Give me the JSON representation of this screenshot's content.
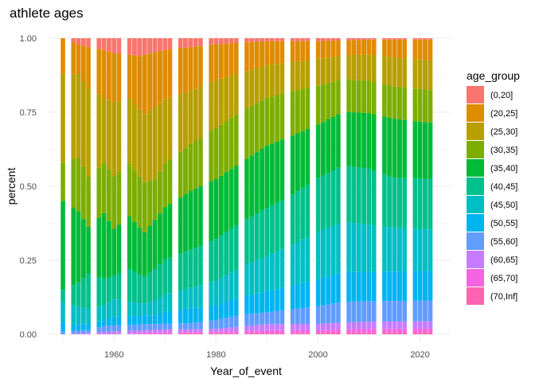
{
  "chart_data": {
    "type": "area",
    "subtype": "stacked-percent-bars",
    "title": "athlete ages",
    "xlabel": "Year_of_event",
    "ylabel": "percent",
    "xlim": [
      1947,
      2026
    ],
    "ylim": [
      0,
      1
    ],
    "x_ticks": [
      1960,
      1980,
      2000,
      2020
    ],
    "y_ticks": [
      0,
      0.25,
      0.5,
      0.75,
      1
    ],
    "y_tick_labels": [
      "0.00",
      "0.25",
      "0.50",
      "0.75",
      "1.00"
    ],
    "grid": true,
    "legend": {
      "title": "age_group",
      "position": "right"
    },
    "x_start": 1950,
    "x_end": 2022,
    "x_missing": [
      1951,
      1956,
      1962,
      1972,
      1978,
      1985,
      1994,
      1999,
      2005,
      2012,
      2018
    ],
    "series": [
      {
        "name": "(0,20]",
        "color": "#F8766D",
        "keyframes": [
          [
            1950,
            0.0
          ],
          [
            1953,
            0.02
          ],
          [
            1955,
            0.03
          ],
          [
            1958,
            0.04
          ],
          [
            1960,
            0.05
          ],
          [
            1965,
            0.06
          ],
          [
            1970,
            0.04
          ],
          [
            1975,
            0.03
          ],
          [
            1980,
            0.02
          ],
          [
            1990,
            0.01
          ],
          [
            2000,
            0.01
          ],
          [
            2010,
            0.005
          ],
          [
            2022,
            0.005
          ]
        ]
      },
      {
        "name": "(20,25]",
        "color": "#DE8C00",
        "keyframes": [
          [
            1950,
            0.12
          ],
          [
            1953,
            0.1
          ],
          [
            1955,
            0.14
          ],
          [
            1958,
            0.16
          ],
          [
            1960,
            0.17
          ],
          [
            1963,
            0.15
          ],
          [
            1966,
            0.2
          ],
          [
            1968,
            0.19
          ],
          [
            1970,
            0.17
          ],
          [
            1975,
            0.15
          ],
          [
            1980,
            0.12
          ],
          [
            1985,
            0.1
          ],
          [
            1990,
            0.08
          ],
          [
            1995,
            0.07
          ],
          [
            2000,
            0.06
          ],
          [
            2005,
            0.05
          ],
          [
            2010,
            0.05
          ],
          [
            2015,
            0.06
          ],
          [
            2022,
            0.07
          ]
        ]
      },
      {
        "name": "(25,30]",
        "color": "#B79F00",
        "keyframes": [
          [
            1950,
            0.3
          ],
          [
            1953,
            0.28
          ],
          [
            1955,
            0.3
          ],
          [
            1958,
            0.22
          ],
          [
            1960,
            0.25
          ],
          [
            1963,
            0.22
          ],
          [
            1966,
            0.23
          ],
          [
            1968,
            0.25
          ],
          [
            1970,
            0.22
          ],
          [
            1975,
            0.18
          ],
          [
            1980,
            0.16
          ],
          [
            1985,
            0.13
          ],
          [
            1990,
            0.11
          ],
          [
            1995,
            0.1
          ],
          [
            2000,
            0.09
          ],
          [
            2005,
            0.08
          ],
          [
            2010,
            0.09
          ],
          [
            2015,
            0.1
          ],
          [
            2022,
            0.1
          ]
        ]
      },
      {
        "name": "(30,35]",
        "color": "#7CAE00",
        "keyframes": [
          [
            1950,
            0.13
          ],
          [
            1953,
            0.18
          ],
          [
            1955,
            0.17
          ],
          [
            1958,
            0.17
          ],
          [
            1960,
            0.18
          ],
          [
            1963,
            0.18
          ],
          [
            1966,
            0.17
          ],
          [
            1968,
            0.14
          ],
          [
            1970,
            0.15
          ],
          [
            1975,
            0.16
          ],
          [
            1980,
            0.17
          ],
          [
            1985,
            0.17
          ],
          [
            1990,
            0.16
          ],
          [
            1995,
            0.15
          ],
          [
            2000,
            0.13
          ],
          [
            2005,
            0.11
          ],
          [
            2010,
            0.11
          ],
          [
            2015,
            0.11
          ],
          [
            2022,
            0.11
          ]
        ]
      },
      {
        "name": "(35,40]",
        "color": "#00BA38",
        "keyframes": [
          [
            1950,
            0.3
          ],
          [
            1953,
            0.24
          ],
          [
            1955,
            0.16
          ],
          [
            1958,
            0.22
          ],
          [
            1960,
            0.16
          ],
          [
            1963,
            0.18
          ],
          [
            1966,
            0.15
          ],
          [
            1968,
            0.17
          ],
          [
            1970,
            0.18
          ],
          [
            1975,
            0.2
          ],
          [
            1980,
            0.2
          ],
          [
            1985,
            0.2
          ],
          [
            1990,
            0.21
          ],
          [
            1995,
            0.2
          ],
          [
            2000,
            0.18
          ],
          [
            2005,
            0.18
          ],
          [
            2010,
            0.19
          ],
          [
            2015,
            0.2
          ],
          [
            2022,
            0.19
          ]
        ]
      },
      {
        "name": "(40,45]",
        "color": "#00C08B",
        "keyframes": [
          [
            1950,
            0.04
          ],
          [
            1953,
            0.08
          ],
          [
            1955,
            0.12
          ],
          [
            1958,
            0.09
          ],
          [
            1960,
            0.08
          ],
          [
            1963,
            0.11
          ],
          [
            1966,
            0.09
          ],
          [
            1968,
            0.11
          ],
          [
            1970,
            0.12
          ],
          [
            1975,
            0.13
          ],
          [
            1980,
            0.14
          ],
          [
            1985,
            0.15
          ],
          [
            1990,
            0.16
          ],
          [
            1995,
            0.17
          ],
          [
            2000,
            0.18
          ],
          [
            2005,
            0.19
          ],
          [
            2010,
            0.19
          ],
          [
            2015,
            0.17
          ],
          [
            2022,
            0.17
          ]
        ]
      },
      {
        "name": "(45,50]",
        "color": "#00BFC4",
        "keyframes": [
          [
            1950,
            0.07
          ],
          [
            1953,
            0.06
          ],
          [
            1955,
            0.05
          ],
          [
            1958,
            0.05
          ],
          [
            1960,
            0.06
          ],
          [
            1963,
            0.05
          ],
          [
            1966,
            0.04
          ],
          [
            1968,
            0.05
          ],
          [
            1970,
            0.06
          ],
          [
            1975,
            0.07
          ],
          [
            1980,
            0.08
          ],
          [
            1985,
            0.1
          ],
          [
            1990,
            0.12
          ],
          [
            1995,
            0.14
          ],
          [
            2000,
            0.16
          ],
          [
            2005,
            0.17
          ],
          [
            2010,
            0.16
          ],
          [
            2015,
            0.15
          ],
          [
            2022,
            0.14
          ]
        ]
      },
      {
        "name": "(50,55]",
        "color": "#00B4F0",
        "keyframes": [
          [
            1950,
            0.03
          ],
          [
            1953,
            0.02
          ],
          [
            1955,
            0.02
          ],
          [
            1958,
            0.02
          ],
          [
            1960,
            0.03
          ],
          [
            1963,
            0.03
          ],
          [
            1966,
            0.03
          ],
          [
            1968,
            0.03
          ],
          [
            1970,
            0.04
          ],
          [
            1975,
            0.05
          ],
          [
            1980,
            0.05
          ],
          [
            1985,
            0.06
          ],
          [
            1990,
            0.07
          ],
          [
            1995,
            0.08
          ],
          [
            2000,
            0.09
          ],
          [
            2005,
            0.1
          ],
          [
            2010,
            0.1
          ],
          [
            2015,
            0.1
          ],
          [
            2022,
            0.1
          ]
        ]
      },
      {
        "name": "(55,60]",
        "color": "#619CFF",
        "keyframes": [
          [
            1950,
            0.01
          ],
          [
            1953,
            0.01
          ],
          [
            1955,
            0.01
          ],
          [
            1958,
            0.02
          ],
          [
            1960,
            0.02
          ],
          [
            1963,
            0.02
          ],
          [
            1966,
            0.02
          ],
          [
            1968,
            0.02
          ],
          [
            1970,
            0.02
          ],
          [
            1975,
            0.02
          ],
          [
            1980,
            0.03
          ],
          [
            1985,
            0.04
          ],
          [
            1990,
            0.04
          ],
          [
            1995,
            0.05
          ],
          [
            2000,
            0.06
          ],
          [
            2005,
            0.07
          ],
          [
            2010,
            0.07
          ],
          [
            2015,
            0.07
          ],
          [
            2022,
            0.07
          ]
        ]
      },
      {
        "name": "(60,65]",
        "color": "#C77CFF",
        "keyframes": [
          [
            1950,
            0.0
          ],
          [
            1955,
            0.005
          ],
          [
            1960,
            0.01
          ],
          [
            1970,
            0.01
          ],
          [
            1980,
            0.01
          ],
          [
            1990,
            0.02
          ],
          [
            2000,
            0.02
          ],
          [
            2010,
            0.025
          ],
          [
            2022,
            0.025
          ]
        ]
      },
      {
        "name": "(65,70]",
        "color": "#F564E3",
        "keyframes": [
          [
            1950,
            0.0
          ],
          [
            1960,
            0.0
          ],
          [
            1970,
            0.005
          ],
          [
            1980,
            0.005
          ],
          [
            1990,
            0.01
          ],
          [
            2000,
            0.01
          ],
          [
            2010,
            0.012
          ],
          [
            2022,
            0.012
          ]
        ]
      },
      {
        "name": "(70,Inf]",
        "color": "#FF64B0",
        "keyframes": [
          [
            1950,
            0.0
          ],
          [
            1960,
            0.0
          ],
          [
            1970,
            0.002
          ],
          [
            1980,
            0.003
          ],
          [
            1990,
            0.004
          ],
          [
            2000,
            0.005
          ],
          [
            2010,
            0.006
          ],
          [
            2022,
            0.007
          ]
        ]
      }
    ]
  }
}
